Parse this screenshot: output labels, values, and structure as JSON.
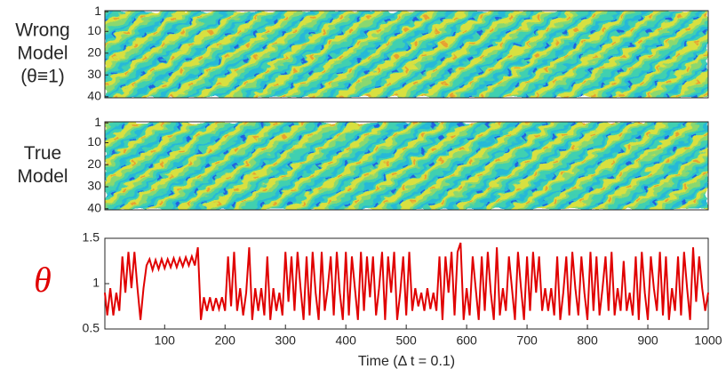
{
  "chart_data": [
    {
      "type": "heatmap",
      "label_lines": [
        "Wrong",
        "Model",
        "(θ≡1)"
      ],
      "ylim": [
        0.5,
        40.5
      ],
      "y_reversed": true,
      "yticks": [
        1,
        10,
        20,
        30,
        40
      ]
    },
    {
      "type": "heatmap",
      "label_lines": [
        "True",
        "Model"
      ],
      "ylim": [
        0.5,
        40.5
      ],
      "y_reversed": true,
      "yticks": [
        1,
        10,
        20,
        30,
        40
      ]
    },
    {
      "type": "line",
      "ylabel": "θ",
      "xlabel": "Time (Δ t = 0.1)",
      "color": "#e00000",
      "xlim": [
        1,
        1000
      ],
      "xticks": [
        100,
        200,
        300,
        400,
        500,
        600,
        700,
        800,
        900,
        1000
      ],
      "ylim": [
        0.5,
        1.5
      ],
      "yticks": [
        0.5,
        1,
        1.5
      ],
      "x": [
        1,
        5,
        10,
        15,
        20,
        25,
        30,
        35,
        40,
        45,
        50,
        55,
        60,
        65,
        70,
        75,
        80,
        85,
        90,
        95,
        100,
        105,
        110,
        115,
        120,
        125,
        130,
        135,
        140,
        145,
        150,
        155,
        160,
        165,
        170,
        175,
        180,
        185,
        190,
        195,
        200,
        205,
        210,
        215,
        220,
        225,
        230,
        235,
        240,
        245,
        250,
        255,
        260,
        265,
        270,
        275,
        280,
        285,
        290,
        295,
        300,
        305,
        310,
        315,
        320,
        325,
        330,
        335,
        340,
        345,
        350,
        355,
        360,
        365,
        370,
        375,
        380,
        385,
        390,
        395,
        400,
        405,
        410,
        415,
        420,
        425,
        430,
        435,
        440,
        445,
        450,
        455,
        460,
        465,
        470,
        475,
        480,
        485,
        490,
        495,
        500,
        505,
        510,
        515,
        520,
        525,
        530,
        535,
        540,
        545,
        550,
        555,
        560,
        565,
        570,
        575,
        580,
        585,
        590,
        595,
        600,
        605,
        610,
        615,
        620,
        625,
        630,
        635,
        640,
        645,
        650,
        655,
        660,
        665,
        670,
        675,
        680,
        685,
        690,
        695,
        700,
        705,
        710,
        715,
        720,
        725,
        730,
        735,
        740,
        745,
        750,
        755,
        760,
        765,
        770,
        775,
        780,
        785,
        790,
        795,
        800,
        805,
        810,
        815,
        820,
        825,
        830,
        835,
        840,
        845,
        850,
        855,
        860,
        865,
        870,
        875,
        880,
        885,
        890,
        895,
        900,
        905,
        910,
        915,
        920,
        925,
        930,
        935,
        940,
        945,
        950,
        955,
        960,
        965,
        970,
        975,
        980,
        985,
        990,
        995,
        1000
      ],
      "values": [
        0.9,
        0.65,
        0.95,
        0.65,
        0.9,
        0.7,
        1.3,
        0.9,
        1.35,
        0.95,
        1.35,
        0.95,
        0.6,
        0.95,
        1.2,
        1.27,
        1.15,
        1.26,
        1.16,
        1.27,
        1.17,
        1.27,
        1.18,
        1.28,
        1.18,
        1.28,
        1.19,
        1.29,
        1.2,
        1.3,
        1.2,
        1.4,
        0.6,
        0.85,
        0.7,
        0.85,
        0.7,
        0.84,
        0.72,
        0.85,
        0.7,
        1.3,
        0.75,
        1.35,
        0.7,
        0.95,
        0.65,
        0.9,
        1.4,
        0.6,
        0.95,
        0.7,
        0.95,
        0.65,
        1.3,
        0.6,
        0.95,
        0.7,
        0.9,
        0.65,
        1.35,
        0.8,
        1.3,
        0.7,
        1.35,
        0.95,
        0.6,
        1.3,
        0.65,
        1.35,
        0.9,
        0.6,
        1.35,
        0.7,
        0.95,
        1.3,
        0.65,
        1.35,
        0.9,
        0.6,
        1.35,
        0.65,
        1.3,
        0.95,
        0.6,
        1.35,
        0.7,
        1.3,
        0.85,
        1.3,
        0.65,
        0.95,
        1.35,
        0.6,
        1.3,
        0.9,
        1.35,
        0.6,
        0.9,
        1.3,
        0.65,
        1.35,
        0.7,
        0.95,
        0.75,
        0.9,
        0.7,
        0.95,
        0.72,
        0.9,
        0.7,
        1.3,
        0.6,
        1.3,
        0.9,
        1.35,
        0.65,
        1.35,
        1.45,
        0.6,
        0.95,
        0.65,
        1.3,
        0.95,
        0.6,
        1.3,
        0.7,
        1.35,
        0.9,
        0.6,
        1.4,
        0.65,
        0.95,
        0.7,
        1.3,
        0.95,
        0.6,
        1.35,
        0.95,
        0.6,
        1.3,
        0.7,
        1.35,
        0.9,
        1.3,
        0.7,
        0.95,
        0.7,
        0.95,
        0.65,
        1.3,
        0.6,
        0.9,
        1.3,
        0.65,
        1.35,
        0.95,
        0.65,
        1.3,
        0.9,
        0.6,
        1.35,
        0.7,
        1.3,
        0.65,
        0.95,
        1.3,
        0.7,
        1.35,
        0.65,
        0.95,
        0.7,
        1.25,
        0.7,
        0.9,
        0.65,
        1.3,
        0.6,
        1.35,
        0.9,
        0.6,
        1.3,
        0.95,
        0.7,
        1.35,
        0.65,
        1.3,
        0.6,
        0.95,
        0.7,
        1.3,
        0.65,
        1.35,
        0.95,
        0.6,
        1.4,
        0.8,
        1.3,
        0.95,
        0.7,
        0.9
      ]
    }
  ]
}
